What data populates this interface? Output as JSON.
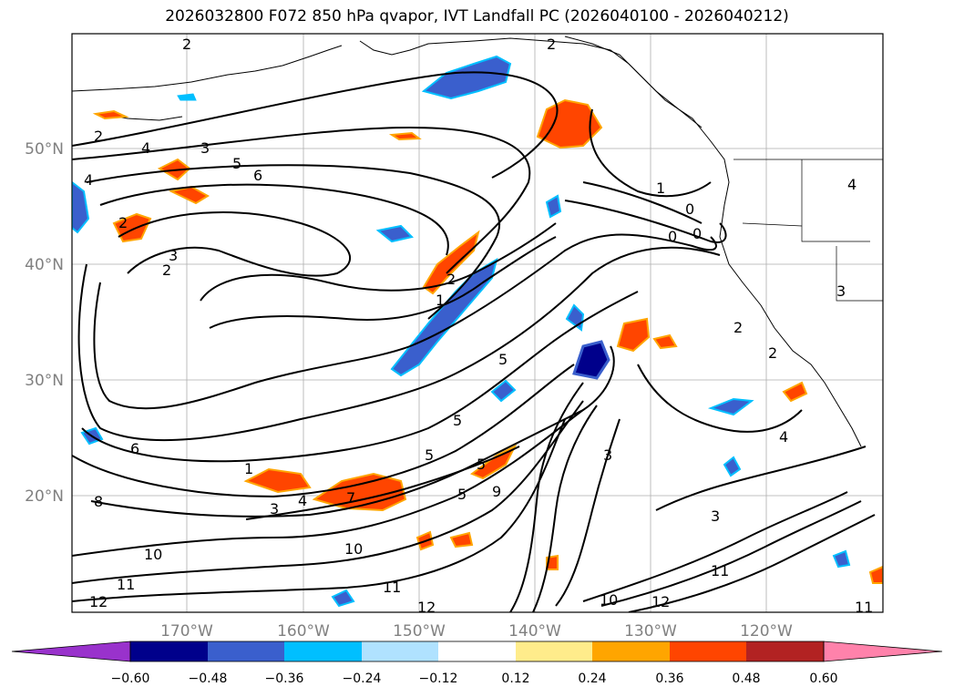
{
  "title": "2026032800 F072 850 hPa qvapor, IVT Landfall PC (2026040100 - 2026040212)",
  "lat_labels": [
    "50°N",
    "40°N",
    "30°N",
    "20°N"
  ],
  "lon_labels": [
    "170°W",
    "160°W",
    "150°W",
    "140°W",
    "130°W",
    "120°W"
  ],
  "colorbar": {
    "ticks": [
      "−0.60",
      "−0.48",
      "−0.36",
      "−0.24",
      "−0.12",
      "0.12",
      "0.24",
      "0.36",
      "0.48",
      "0.60"
    ],
    "colors": [
      "#9932cc",
      "#00008b",
      "#3a5fcd",
      "#00bfff",
      "#b0e2ff",
      "#ffffff",
      "#ffec8b",
      "#ffa500",
      "#ff4500",
      "#b22222",
      "#ff82ab"
    ]
  },
  "contour_labels": [
    "2",
    "2",
    "2",
    "4",
    "3",
    "5",
    "6",
    "4",
    "2",
    "3",
    "2",
    "1",
    "0",
    "0",
    "0",
    "1",
    "2",
    "1",
    "5",
    "5",
    "5",
    "5",
    "6",
    "7",
    "4",
    "3",
    "8",
    "5",
    "4",
    "3",
    "9",
    "3",
    "4",
    "3",
    "2",
    "2",
    "10",
    "10",
    "11",
    "11",
    "12",
    "12",
    "12",
    "11",
    "11",
    "10"
  ]
}
